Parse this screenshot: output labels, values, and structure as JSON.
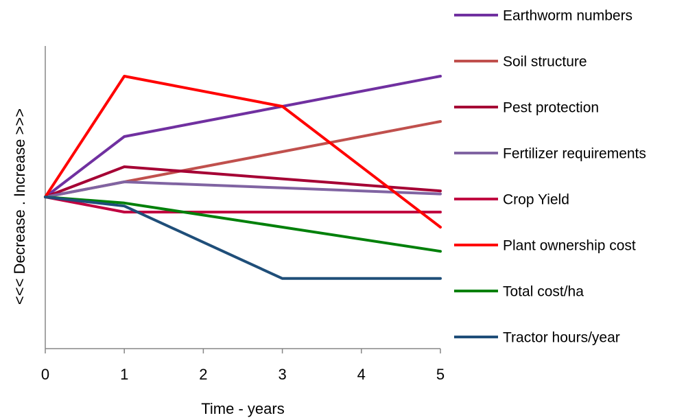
{
  "chart_data": {
    "type": "line",
    "title": "",
    "xlabel": "Time - years",
    "ylabel": "<<< Decrease . Increase >>>",
    "x_ticks": [
      "0",
      "1",
      "2",
      "3",
      "4",
      "5"
    ],
    "xlim": [
      0,
      5
    ],
    "ylim": [
      -10,
      10
    ],
    "grid": false,
    "legend_position": "right",
    "series": [
      {
        "name": "Earthworm numbers",
        "color": "#7030A0",
        "x": [
          0,
          1,
          3,
          5
        ],
        "y": [
          0,
          4,
          6,
          8
        ]
      },
      {
        "name": "Soil structure",
        "color": "#C0504D",
        "x": [
          0,
          1,
          3,
          5
        ],
        "y": [
          0,
          1,
          3,
          5
        ]
      },
      {
        "name": "Pest protection",
        "color": "#A50034",
        "x": [
          0,
          1,
          3,
          5
        ],
        "y": [
          0,
          2,
          1.2,
          0.4
        ]
      },
      {
        "name": "Fertilizer requirements",
        "color": "#8064A2",
        "x": [
          0,
          1,
          3,
          5
        ],
        "y": [
          0,
          1,
          0.6,
          0.2
        ]
      },
      {
        "name": "Crop Yield",
        "color": "#C00040",
        "x": [
          0,
          1,
          3,
          5
        ],
        "y": [
          0,
          -1,
          -1,
          -1
        ]
      },
      {
        "name": "Plant ownership cost",
        "color": "#FF0000",
        "x": [
          0,
          1,
          3,
          5
        ],
        "y": [
          0,
          8,
          6,
          -2
        ]
      },
      {
        "name": "Total cost/ha",
        "color": "#00800A",
        "x": [
          0,
          1,
          3,
          5
        ],
        "y": [
          0,
          -0.4,
          -2,
          -3.6
        ]
      },
      {
        "name": "Tractor hours/year",
        "color": "#1F4E79",
        "x": [
          0,
          1,
          3,
          5
        ],
        "y": [
          0,
          -0.6,
          -5.4,
          -5.4
        ]
      }
    ]
  }
}
